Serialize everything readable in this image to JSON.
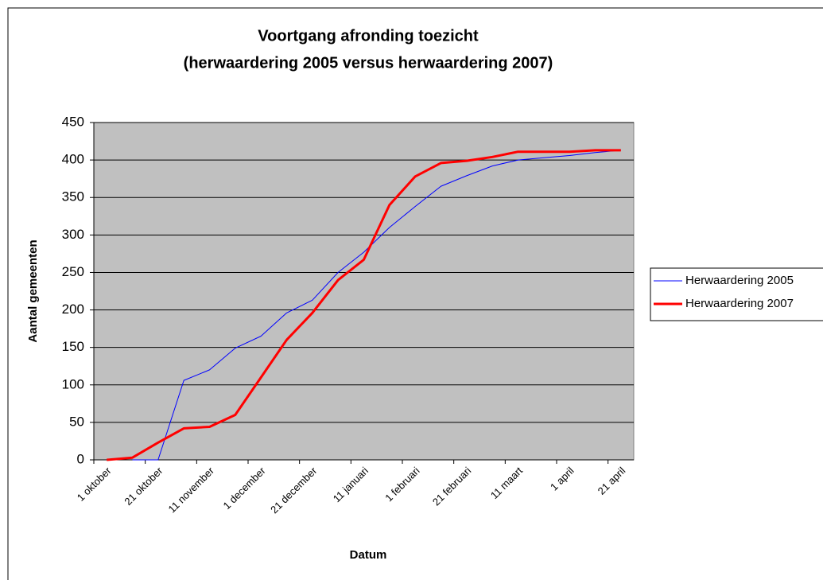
{
  "chart_data": {
    "type": "line",
    "title": "Voortgang afronding toezicht",
    "subtitle": "(herwaardering 2005 versus herwaardering 2007)",
    "x_label": "Datum",
    "y_label": "Aantal gemeenten",
    "categories": [
      "1 oktober",
      null,
      "21 oktober",
      null,
      "11 november",
      null,
      "1 december",
      null,
      "21 december",
      null,
      "11 januari",
      null,
      "1 februari",
      null,
      "21 februari",
      null,
      "11 maart",
      null,
      "1 april",
      null,
      "21 april"
    ],
    "series": [
      {
        "name": "Herwaardering 2005",
        "color": "#0000ff",
        "width": 1,
        "values": [
          null,
          0,
          0,
          106,
          120,
          149,
          165,
          196,
          213,
          250,
          277,
          310,
          338,
          365,
          379,
          392,
          400,
          403,
          406,
          410,
          413
        ]
      },
      {
        "name": "Herwaardering 2007",
        "color": "#ff0000",
        "width": 3,
        "values": [
          0,
          3,
          23,
          42,
          44,
          60,
          110,
          160,
          196,
          240,
          267,
          340,
          378,
          396,
          399,
          404,
          411,
          411,
          411,
          413,
          413
        ]
      }
    ],
    "ylim": [
      0,
      450
    ],
    "yticks": [
      0,
      50,
      100,
      150,
      200,
      250,
      300,
      350,
      400,
      450
    ],
    "grid": true
  }
}
